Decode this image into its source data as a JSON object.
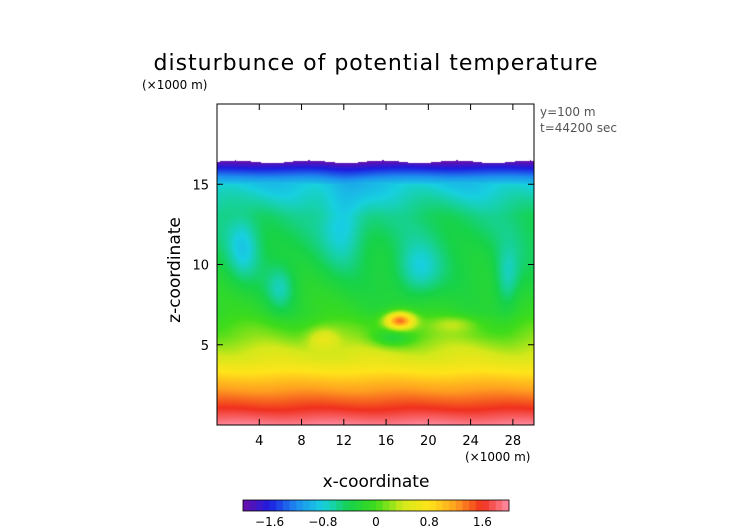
{
  "chart_data": {
    "type": "heatmap",
    "title": "disturbunce of potential temperature",
    "xlabel": "x-coordinate",
    "ylabel": "z-coordinate",
    "x_unit": "(×1000 m)",
    "y_unit": "(×1000 m)",
    "xlim": [
      0,
      30
    ],
    "ylim": [
      0,
      20
    ],
    "x_ticks": [
      4,
      8,
      12,
      16,
      20,
      24,
      28
    ],
    "y_ticks": [
      5,
      10,
      15
    ],
    "annotations": [
      "y=100 m",
      "t=44200 sec"
    ],
    "colorbar": {
      "range": [
        -2.0,
        2.0
      ],
      "ticks": [
        "−1.6",
        "−0.8",
        "0",
        "0.8",
        "1.6"
      ],
      "tick_values": [
        -1.6,
        -0.8,
        0,
        0.8,
        1.6
      ],
      "colors": [
        "#6a0fa8",
        "#1d1de0",
        "#1e8cf0",
        "#17d0e0",
        "#16d24a",
        "#3fdc1a",
        "#d4e81a",
        "#ffe41a",
        "#ffa020",
        "#f0301e",
        "#ff90a8"
      ]
    },
    "field": {
      "top_of_data_z": 16.4,
      "background_profile": [
        {
          "z": 0.0,
          "value": 1.95
        },
        {
          "z": 1.0,
          "value": 1.6
        },
        {
          "z": 2.5,
          "value": 1.1
        },
        {
          "z": 4.0,
          "value": 0.55
        },
        {
          "z": 5.5,
          "value": 0.15
        },
        {
          "z": 7.0,
          "value": -0.15
        },
        {
          "z": 10.0,
          "value": -0.35
        },
        {
          "z": 13.0,
          "value": -0.5
        },
        {
          "z": 15.0,
          "value": -0.85
        },
        {
          "z": 16.0,
          "value": -1.6
        },
        {
          "z": 16.4,
          "value": -1.95
        }
      ],
      "features": [
        {
          "x": 17.3,
          "z": 6.5,
          "value": 1.5,
          "rx": 1.4,
          "rz": 0.55
        },
        {
          "x": 12.0,
          "z": 12.5,
          "value": -0.4,
          "rx": 2.0,
          "rz": 2.5
        },
        {
          "x": 19.0,
          "z": 9.5,
          "value": -0.45,
          "rx": 2.2,
          "rz": 1.8
        },
        {
          "x": 2.5,
          "z": 11.0,
          "value": -0.4,
          "rx": 1.5,
          "rz": 2.0
        },
        {
          "x": 27.5,
          "z": 9.0,
          "value": -0.45,
          "rx": 1.2,
          "rz": 2.0
        },
        {
          "x": 16.5,
          "z": 5.4,
          "value": -0.4,
          "rx": 2.0,
          "rz": 0.6
        },
        {
          "x": 10.0,
          "z": 5.4,
          "value": 0.45,
          "rx": 1.5,
          "rz": 0.7
        },
        {
          "x": 22.5,
          "z": 6.3,
          "value": 0.3,
          "rx": 2.2,
          "rz": 0.5
        },
        {
          "x": 6.0,
          "z": 8.5,
          "value": -0.4,
          "rx": 1.4,
          "rz": 1.4
        }
      ]
    }
  }
}
